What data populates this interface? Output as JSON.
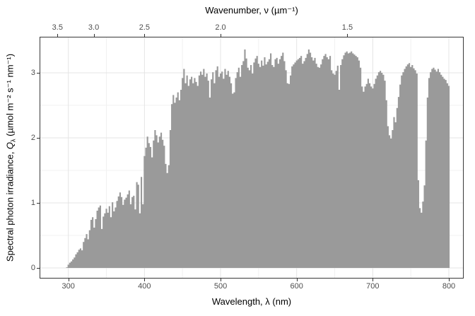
{
  "chart_data": {
    "type": "area",
    "style": "solar spectrum, jagged filled area (ggplot-like)",
    "fill_color": "#9a9a9a",
    "panel_border_color": "#383838",
    "grid_major_color": "#e4e4e4",
    "grid_minor_color": "#f1f1f1",
    "tick_label_color": "#4d4d4d",
    "xlabel": "Wavelength, λ (nm)",
    "x2label": "Wavenumber, ν (µm⁻¹)",
    "ylabel": "Spectral photon irradiance, Qλ (µmol m⁻² s⁻¹ nm⁻¹)",
    "y_title_parts": {
      "pre": "Spectral photon irradiance, ",
      "sym": "Q",
      "sub": "λ",
      "post": " (µmol m⁻² s⁻¹ nm⁻¹)"
    },
    "xlim": [
      262.2,
      819.5
    ],
    "ylim": [
      -0.163,
      3.555
    ],
    "x_ticks": [
      300,
      400,
      500,
      600,
      700,
      800
    ],
    "x_tick_labels": [
      "300",
      "400",
      "500",
      "600",
      "700",
      "800"
    ],
    "x_minor": [
      350,
      450,
      550,
      650,
      750
    ],
    "y_ticks": [
      0,
      1,
      2,
      3
    ],
    "y_tick_labels": [
      "0",
      "1",
      "2",
      "3"
    ],
    "y_minor": [
      0.5,
      1.5,
      2.5
    ],
    "x2_ticks": [
      3.5,
      3.0,
      2.5,
      2.0,
      1.5
    ],
    "x2_tick_labels": [
      "3.5",
      "3.0",
      "2.5",
      "2.0",
      "1.5"
    ],
    "points": [
      [
        298,
        0.01
      ],
      [
        300,
        0.05
      ],
      [
        302,
        0.08
      ],
      [
        304,
        0.1
      ],
      [
        306,
        0.13
      ],
      [
        308,
        0.16
      ],
      [
        310,
        0.21
      ],
      [
        312,
        0.24
      ],
      [
        314,
        0.28
      ],
      [
        316,
        0.3
      ],
      [
        318,
        0.27
      ],
      [
        320,
        0.4
      ],
      [
        322,
        0.46
      ],
      [
        324,
        0.52
      ],
      [
        326,
        0.44
      ],
      [
        328,
        0.58
      ],
      [
        330,
        0.74
      ],
      [
        332,
        0.78
      ],
      [
        334,
        0.62
      ],
      [
        336,
        0.75
      ],
      [
        338,
        0.88
      ],
      [
        340,
        0.93
      ],
      [
        342,
        0.96
      ],
      [
        344,
        0.6
      ],
      [
        346,
        0.79
      ],
      [
        348,
        0.84
      ],
      [
        350,
        0.91
      ],
      [
        352,
        0.85
      ],
      [
        354,
        0.95
      ],
      [
        356,
        0.78
      ],
      [
        358,
        1.01
      ],
      [
        360,
        0.87
      ],
      [
        362,
        0.93
      ],
      [
        364,
        1.03
      ],
      [
        366,
        1.1
      ],
      [
        368,
        1.16
      ],
      [
        370,
        1.09
      ],
      [
        372,
        0.97
      ],
      [
        374,
        1.05
      ],
      [
        376,
        1.08
      ],
      [
        378,
        1.13
      ],
      [
        380,
        1.19
      ],
      [
        382,
        0.98
      ],
      [
        384,
        1.09
      ],
      [
        386,
        1.11
      ],
      [
        388,
        0.9
      ],
      [
        390,
        1.32
      ],
      [
        392,
        1.28
      ],
      [
        394,
        0.84
      ],
      [
        396,
        1.4
      ],
      [
        398,
        0.98
      ],
      [
        400,
        1.72
      ],
      [
        402,
        1.85
      ],
      [
        404,
        2.02
      ],
      [
        406,
        1.92
      ],
      [
        408,
        1.86
      ],
      [
        410,
        1.7
      ],
      [
        412,
        1.96
      ],
      [
        414,
        2.12
      ],
      [
        416,
        2.04
      ],
      [
        418,
        1.93
      ],
      [
        420,
        2.02
      ],
      [
        422,
        2.08
      ],
      [
        424,
        1.97
      ],
      [
        426,
        1.88
      ],
      [
        428,
        1.6
      ],
      [
        430,
        1.46
      ],
      [
        432,
        1.58
      ],
      [
        434,
        2.12
      ],
      [
        436,
        2.52
      ],
      [
        438,
        2.66
      ],
      [
        440,
        2.54
      ],
      [
        442,
        2.62
      ],
      [
        444,
        2.7
      ],
      [
        446,
        2.58
      ],
      [
        448,
        2.74
      ],
      [
        450,
        2.92
      ],
      [
        452,
        3.06
      ],
      [
        454,
        2.84
      ],
      [
        456,
        2.96
      ],
      [
        458,
        2.8
      ],
      [
        460,
        2.9
      ],
      [
        462,
        2.94
      ],
      [
        464,
        2.84
      ],
      [
        466,
        2.92
      ],
      [
        468,
        2.86
      ],
      [
        470,
        2.8
      ],
      [
        472,
        2.96
      ],
      [
        474,
        3.02
      ],
      [
        476,
        2.97
      ],
      [
        478,
        3.06
      ],
      [
        480,
        2.94
      ],
      [
        482,
        2.99
      ],
      [
        484,
        2.88
      ],
      [
        486,
        2.62
      ],
      [
        488,
        2.9
      ],
      [
        490,
        3.01
      ],
      [
        492,
        2.84
      ],
      [
        494,
        3.04
      ],
      [
        496,
        3.1
      ],
      [
        498,
        2.94
      ],
      [
        500,
        2.99
      ],
      [
        502,
        3.02
      ],
      [
        504,
        2.91
      ],
      [
        506,
        3.06
      ],
      [
        508,
        2.97
      ],
      [
        510,
        3.03
      ],
      [
        512,
        2.94
      ],
      [
        514,
        2.84
      ],
      [
        516,
        2.68
      ],
      [
        518,
        2.7
      ],
      [
        520,
        2.92
      ],
      [
        522,
        3.01
      ],
      [
        524,
        3.08
      ],
      [
        526,
        2.94
      ],
      [
        528,
        3.12
      ],
      [
        530,
        3.18
      ],
      [
        532,
        3.36
      ],
      [
        534,
        3.22
      ],
      [
        536,
        3.08
      ],
      [
        538,
        3.04
      ],
      [
        540,
        3.12
      ],
      [
        542,
        2.99
      ],
      [
        544,
        3.16
      ],
      [
        546,
        3.22
      ],
      [
        548,
        3.26
      ],
      [
        550,
        3.14
      ],
      [
        552,
        3.09
      ],
      [
        554,
        3.19
      ],
      [
        556,
        3.11
      ],
      [
        558,
        3.24
      ],
      [
        560,
        3.13
      ],
      [
        562,
        3.17
      ],
      [
        564,
        3.21
      ],
      [
        566,
        3.3
      ],
      [
        568,
        3.12
      ],
      [
        570,
        3.09
      ],
      [
        572,
        3.21
      ],
      [
        574,
        3.23
      ],
      [
        576,
        3.14
      ],
      [
        578,
        3.21
      ],
      [
        580,
        3.26
      ],
      [
        582,
        3.31
      ],
      [
        584,
        3.18
      ],
      [
        586,
        3.04
      ],
      [
        588,
        2.84
      ],
      [
        590,
        2.83
      ],
      [
        592,
        2.96
      ],
      [
        594,
        3.1
      ],
      [
        596,
        3.13
      ],
      [
        598,
        3.16
      ],
      [
        600,
        3.19
      ],
      [
        602,
        3.21
      ],
      [
        604,
        3.23
      ],
      [
        606,
        3.26
      ],
      [
        608,
        3.14
      ],
      [
        610,
        3.18
      ],
      [
        612,
        3.23
      ],
      [
        614,
        3.29
      ],
      [
        616,
        3.36
      ],
      [
        618,
        3.31
      ],
      [
        620,
        3.24
      ],
      [
        622,
        3.19
      ],
      [
        624,
        3.23
      ],
      [
        626,
        3.14
      ],
      [
        628,
        3.09
      ],
      [
        630,
        3.08
      ],
      [
        632,
        3.13
      ],
      [
        634,
        3.21
      ],
      [
        636,
        3.26
      ],
      [
        638,
        3.29
      ],
      [
        640,
        3.24
      ],
      [
        642,
        3.21
      ],
      [
        644,
        3.26
      ],
      [
        646,
        3.04
      ],
      [
        648,
        2.99
      ],
      [
        650,
        2.97
      ],
      [
        652,
        3.03
      ],
      [
        654,
        3.11
      ],
      [
        656,
        2.74
      ],
      [
        658,
        3.12
      ],
      [
        660,
        3.21
      ],
      [
        662,
        3.27
      ],
      [
        664,
        3.31
      ],
      [
        666,
        3.33
      ],
      [
        668,
        3.3
      ],
      [
        670,
        3.31
      ],
      [
        672,
        3.33
      ],
      [
        674,
        3.3
      ],
      [
        676,
        3.28
      ],
      [
        678,
        3.26
      ],
      [
        680,
        3.24
      ],
      [
        682,
        3.19
      ],
      [
        684,
        3.08
      ],
      [
        686,
        2.79
      ],
      [
        688,
        2.71
      ],
      [
        690,
        2.79
      ],
      [
        692,
        2.83
      ],
      [
        694,
        2.91
      ],
      [
        696,
        2.84
      ],
      [
        698,
        2.79
      ],
      [
        700,
        2.76
      ],
      [
        702,
        2.83
      ],
      [
        704,
        2.91
      ],
      [
        706,
        2.96
      ],
      [
        708,
        3.01
      ],
      [
        710,
        3.03
      ],
      [
        712,
        3.0
      ],
      [
        714,
        2.97
      ],
      [
        716,
        2.88
      ],
      [
        718,
        2.58
      ],
      [
        720,
        2.18
      ],
      [
        722,
        2.04
      ],
      [
        724,
        1.99
      ],
      [
        726,
        2.12
      ],
      [
        728,
        2.32
      ],
      [
        730,
        2.24
      ],
      [
        732,
        2.46
      ],
      [
        734,
        2.63
      ],
      [
        736,
        2.82
      ],
      [
        738,
        2.96
      ],
      [
        740,
        3.01
      ],
      [
        742,
        3.06
      ],
      [
        744,
        3.1
      ],
      [
        746,
        3.13
      ],
      [
        748,
        3.15
      ],
      [
        750,
        3.09
      ],
      [
        752,
        3.12
      ],
      [
        754,
        3.07
      ],
      [
        756,
        3.04
      ],
      [
        758,
        2.99
      ],
      [
        760,
        1.35
      ],
      [
        762,
        0.92
      ],
      [
        764,
        0.85
      ],
      [
        766,
        1.02
      ],
      [
        768,
        1.27
      ],
      [
        770,
        1.96
      ],
      [
        772,
        2.62
      ],
      [
        774,
        2.92
      ],
      [
        776,
        3.01
      ],
      [
        778,
        3.06
      ],
      [
        780,
        3.08
      ],
      [
        782,
        3.05
      ],
      [
        784,
        3.02
      ],
      [
        786,
        3.06
      ],
      [
        788,
        3.01
      ],
      [
        790,
        2.97
      ],
      [
        792,
        2.94
      ],
      [
        794,
        2.91
      ],
      [
        796,
        2.89
      ],
      [
        798,
        2.84
      ],
      [
        800,
        2.8
      ]
    ]
  }
}
